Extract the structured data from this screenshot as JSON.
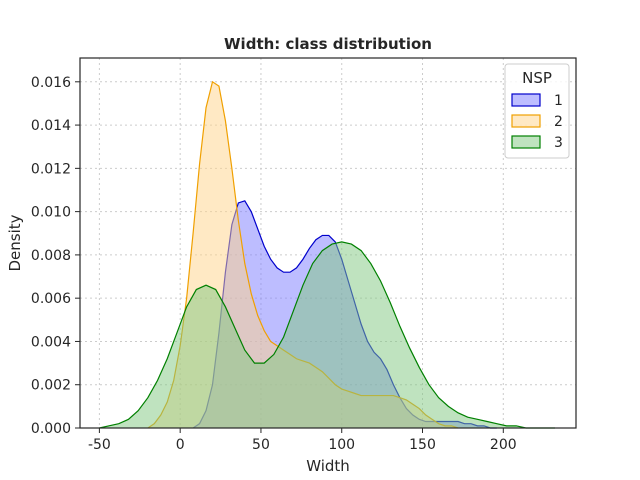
{
  "chart_data": {
    "type": "area",
    "title": "Width: class distribution",
    "xlabel": "Width",
    "ylabel": "Density",
    "xlim": [
      -62,
      245
    ],
    "ylim": [
      0,
      0.0171
    ],
    "xticks": [
      -50,
      0,
      50,
      100,
      150,
      200
    ],
    "yticks": [
      0.0,
      0.002,
      0.004,
      0.006,
      0.008,
      0.01,
      0.012,
      0.014,
      0.016
    ],
    "ytick_labels": [
      "0.000",
      "0.002",
      "0.004",
      "0.006",
      "0.008",
      "0.010",
      "0.012",
      "0.014",
      "0.016"
    ],
    "grid": true,
    "legend": {
      "title": "NSP",
      "placement": "top-right"
    },
    "series": [
      {
        "name": "1",
        "color": "#0000cc",
        "fill": "#7b7bff",
        "x": [
          8,
          12,
          16,
          20,
          24,
          28,
          32,
          36,
          40,
          44,
          48,
          52,
          56,
          60,
          64,
          68,
          72,
          76,
          80,
          84,
          88,
          92,
          96,
          100,
          104,
          108,
          112,
          116,
          120,
          124,
          128,
          132,
          136,
          140,
          144,
          148,
          152,
          156,
          160,
          164,
          168,
          172,
          176,
          180,
          184,
          188,
          192,
          196
        ],
        "y": [
          0.0,
          0.0002,
          0.0008,
          0.002,
          0.0044,
          0.0072,
          0.0094,
          0.0104,
          0.0105,
          0.01,
          0.0092,
          0.0084,
          0.0078,
          0.0074,
          0.0072,
          0.0072,
          0.0074,
          0.0078,
          0.0083,
          0.0087,
          0.0089,
          0.0089,
          0.0086,
          0.0078,
          0.0068,
          0.0058,
          0.0048,
          0.004,
          0.0035,
          0.0032,
          0.0027,
          0.002,
          0.0014,
          0.0009,
          0.0006,
          0.0004,
          0.0003,
          0.0003,
          0.0003,
          0.0003,
          0.0003,
          0.0003,
          0.0002,
          0.0002,
          0.0001,
          0.0001,
          0.0,
          0.0
        ]
      },
      {
        "name": "2",
        "color": "#f0a000",
        "fill": "#ffd38a",
        "x": [
          -20,
          -16,
          -12,
          -8,
          -4,
          0,
          4,
          8,
          12,
          16,
          20,
          24,
          28,
          32,
          36,
          40,
          44,
          48,
          52,
          56,
          60,
          64,
          68,
          72,
          76,
          80,
          84,
          88,
          92,
          96,
          100,
          104,
          108,
          112,
          116,
          120,
          124,
          128,
          132,
          136,
          140,
          144,
          148,
          152,
          156,
          160,
          164,
          168,
          172
        ],
        "y": [
          0.0,
          0.0002,
          0.0006,
          0.0012,
          0.0022,
          0.0038,
          0.006,
          0.009,
          0.0122,
          0.0148,
          0.016,
          0.0158,
          0.0142,
          0.012,
          0.0096,
          0.0076,
          0.0062,
          0.0052,
          0.0045,
          0.004,
          0.0038,
          0.0036,
          0.0034,
          0.0032,
          0.0031,
          0.003,
          0.0028,
          0.0026,
          0.0023,
          0.002,
          0.0018,
          0.0017,
          0.0016,
          0.0015,
          0.0015,
          0.0015,
          0.0015,
          0.0015,
          0.0015,
          0.0014,
          0.0013,
          0.0011,
          0.0009,
          0.0006,
          0.0004,
          0.0002,
          0.0001,
          0.0001,
          0.0
        ]
      },
      {
        "name": "3",
        "color": "#008000",
        "fill": "#7fc77f",
        "x": [
          -50,
          -44,
          -38,
          -32,
          -26,
          -20,
          -14,
          -8,
          -2,
          4,
          10,
          16,
          22,
          28,
          34,
          40,
          46,
          52,
          58,
          64,
          70,
          76,
          82,
          88,
          94,
          100,
          106,
          112,
          118,
          124,
          130,
          136,
          142,
          148,
          154,
          160,
          166,
          172,
          178,
          184,
          190,
          196,
          202,
          208,
          214,
          220,
          226,
          232
        ],
        "y": [
          0.0,
          0.0001,
          0.0002,
          0.0004,
          0.0008,
          0.0014,
          0.0022,
          0.0032,
          0.0044,
          0.0056,
          0.0064,
          0.0066,
          0.0064,
          0.0056,
          0.0046,
          0.0036,
          0.003,
          0.003,
          0.0034,
          0.0042,
          0.0054,
          0.0066,
          0.0076,
          0.0082,
          0.0085,
          0.0086,
          0.0085,
          0.0082,
          0.0076,
          0.0068,
          0.0058,
          0.0047,
          0.0037,
          0.0028,
          0.002,
          0.0014,
          0.001,
          0.0007,
          0.0005,
          0.0004,
          0.0003,
          0.0002,
          0.0001,
          0.0001,
          0.0,
          0.0,
          0.0,
          0.0
        ]
      }
    ]
  }
}
